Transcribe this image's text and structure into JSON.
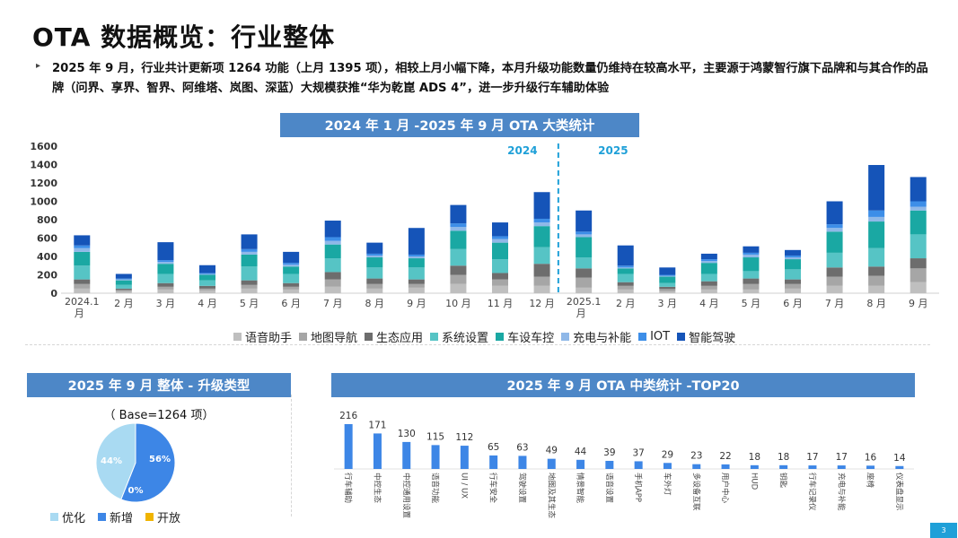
{
  "page": {
    "title": "OTA 数据概览：行业整体",
    "summary": "2025 年 9 月，行业共计更新项 1264 功能（上月 1395 项），相较上月小幅下降，本月升级功能数量仍维持在较高水平，主要源于鸿蒙智行旗下品牌和与其合作的品牌（问界、享界、智界、阿维塔、岚图、深蓝）大规模获推“华为乾崑 ADS 4”，进一步升级行车辅助体验",
    "bullet_icon": "▸",
    "page_number": "3"
  },
  "colors": {
    "banner": "#4d87c7",
    "divider": "#1fa0d8",
    "series": [
      "#bfbfbf",
      "#a6a6a6",
      "#6d6d6d",
      "#56c4c5",
      "#1aa8a3",
      "#8fb8e8",
      "#3d8ee8",
      "#1554b8"
    ],
    "pie": [
      "#a9daf2",
      "#3d86e6",
      "#f0b400"
    ],
    "bars": "#3d86e6"
  },
  "chart_data": [
    {
      "type": "bar",
      "stacked": true,
      "title": "2024 年 1 月 -2025 年 9 月 OTA 大类统计",
      "categories": [
        "2024.1 月",
        "2 月",
        "3 月",
        "4 月",
        "5 月",
        "6 月",
        "7 月",
        "8 月",
        "9 月",
        "10 月",
        "11 月",
        "12 月",
        "2025.1 月",
        "2 月",
        "3 月",
        "4 月",
        "5 月",
        "6 月",
        "7 月",
        "8 月",
        "9 月"
      ],
      "yticks": [
        "0",
        "200",
        "400",
        "600",
        "800",
        "1000",
        "1200",
        "1400",
        "1600"
      ],
      "ylim": [
        0,
        1600
      ],
      "year_labels": [
        "2024",
        "2025"
      ],
      "legend": [
        "语音助手",
        "地图导航",
        "生态应用",
        "系统设置",
        "车设车控",
        "充电与补能",
        "IOT",
        "智能驾驶"
      ],
      "series": [
        {
          "name": "语音助手",
          "values": [
            50,
            20,
            40,
            30,
            50,
            40,
            70,
            50,
            60,
            100,
            80,
            80,
            60,
            40,
            20,
            40,
            40,
            50,
            80,
            80,
            120
          ]
        },
        {
          "name": "地图导航",
          "values": [
            50,
            15,
            30,
            20,
            40,
            30,
            80,
            50,
            40,
            100,
            70,
            100,
            110,
            40,
            25,
            40,
            60,
            50,
            100,
            110,
            150
          ]
        },
        {
          "name": "生态应用",
          "values": [
            50,
            15,
            40,
            30,
            50,
            40,
            80,
            60,
            50,
            100,
            70,
            140,
            100,
            40,
            25,
            50,
            60,
            50,
            100,
            100,
            110
          ]
        },
        {
          "name": "系统设置",
          "values": [
            150,
            40,
            100,
            60,
            150,
            100,
            150,
            120,
            130,
            180,
            150,
            180,
            120,
            90,
            40,
            80,
            80,
            110,
            160,
            200,
            260
          ]
        },
        {
          "name": "车设车控",
          "values": [
            150,
            50,
            110,
            60,
            130,
            80,
            150,
            110,
            100,
            200,
            180,
            230,
            220,
            60,
            70,
            120,
            150,
            110,
            230,
            290,
            260
          ]
        },
        {
          "name": "充电与补能",
          "values": [
            40,
            10,
            20,
            10,
            30,
            20,
            40,
            20,
            20,
            40,
            40,
            40,
            30,
            10,
            10,
            20,
            30,
            20,
            40,
            50,
            40
          ]
        },
        {
          "name": "IOT",
          "values": [
            30,
            10,
            20,
            10,
            30,
            20,
            40,
            20,
            20,
            40,
            30,
            40,
            30,
            20,
            10,
            20,
            20,
            20,
            40,
            70,
            60
          ]
        },
        {
          "name": "智能驾驶",
          "values": [
            110,
            50,
            195,
            85,
            160,
            120,
            180,
            120,
            290,
            200,
            150,
            290,
            230,
            220,
            80,
            60,
            70,
            60,
            250,
            495,
            264
          ]
        }
      ]
    },
    {
      "type": "pie",
      "title": "2025 年 9 月 整体 - 升级类型",
      "base": "（ Base=1264 项）",
      "labels": [
        "优化",
        "新增",
        "开放"
      ],
      "values": [
        44,
        56,
        0
      ],
      "value_labels": [
        "44%",
        "56%",
        "0%"
      ]
    },
    {
      "type": "bar",
      "title": "2025 年 9 月 OTA 中类统计 -TOP20",
      "categories": [
        "行车辅助",
        "中控生态",
        "中控通用设置",
        "语音功能",
        "UI / UX",
        "行车安全",
        "驾驶设置",
        "地图及其生态",
        "情景智能",
        "语音设置",
        "手机APP",
        "车外灯",
        "多设备互联",
        "用户中心",
        "HUD",
        "钥匙",
        "行车记录仪",
        "充电与补能",
        "座椅",
        "仪表盘显示"
      ],
      "values": [
        216,
        171,
        130,
        115,
        112,
        65,
        63,
        49,
        44,
        39,
        37,
        29,
        23,
        22,
        18,
        18,
        17,
        17,
        16,
        14
      ],
      "value_labels": [
        "216",
        "171",
        "130",
        "115",
        "112",
        "65",
        "63",
        "49",
        "44",
        "39",
        "37",
        "29",
        "23",
        "22",
        "18",
        "18",
        "17",
        "17",
        "16",
        "14"
      ]
    }
  ]
}
